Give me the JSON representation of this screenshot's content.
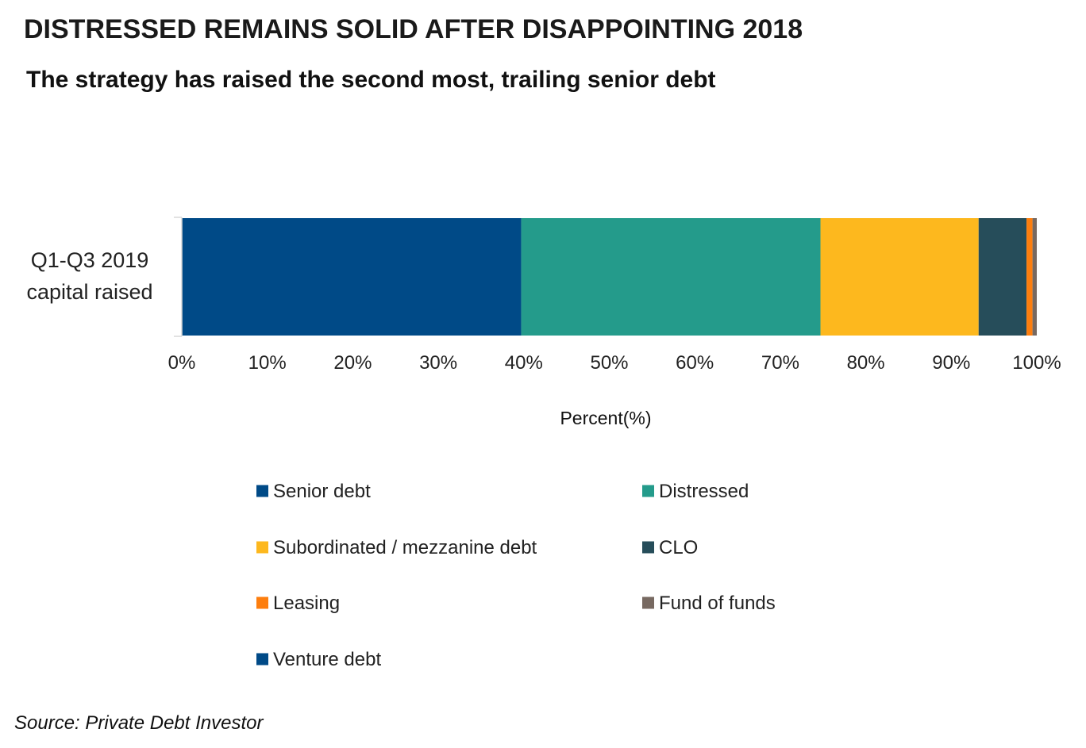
{
  "header": {
    "title": "DISTRESSED REMAINS SOLID AFTER DISAPPOINTING 2018",
    "subtitle": "The strategy has raised the second most, trailing senior debt"
  },
  "chart_data": {
    "type": "bar",
    "orientation": "horizontal",
    "stacked": true,
    "percent_stacked": true,
    "title": "DISTRESSED REMAINS SOLID AFTER DISAPPOINTING 2018",
    "subtitle": "The strategy has raised the second most, trailing senior debt",
    "categories": [
      "Q1-Q3 2019 capital raised"
    ],
    "category_lines": [
      "Q1-Q3 2019",
      "capital raised"
    ],
    "xlabel": "Percent(%)",
    "ylabel": "",
    "xlim": [
      0,
      100
    ],
    "x_ticks": [
      "0%",
      "10%",
      "20%",
      "30%",
      "40%",
      "50%",
      "60%",
      "70%",
      "80%",
      "90%",
      "100%"
    ],
    "grid": false,
    "legend_position": "bottom",
    "series": [
      {
        "name": "Senior debt",
        "values": [
          39.7
        ],
        "color": "#004a87"
      },
      {
        "name": "Distressed",
        "values": [
          35.0
        ],
        "color": "#249b8b"
      },
      {
        "name": "Subordinated / mezzanine debt",
        "values": [
          18.5
        ],
        "color": "#fdb81e"
      },
      {
        "name": "CLO",
        "values": [
          5.6
        ],
        "color": "#264d5a"
      },
      {
        "name": "Leasing",
        "values": [
          0.7
        ],
        "color": "#fd7e0e"
      },
      {
        "name": "Fund of funds",
        "values": [
          0.5
        ],
        "color": "#776961"
      },
      {
        "name": "Venture debt",
        "values": [
          0.0
        ],
        "color": "#004a87"
      }
    ]
  },
  "footer": {
    "source": "Source: Private Debt Investor"
  }
}
